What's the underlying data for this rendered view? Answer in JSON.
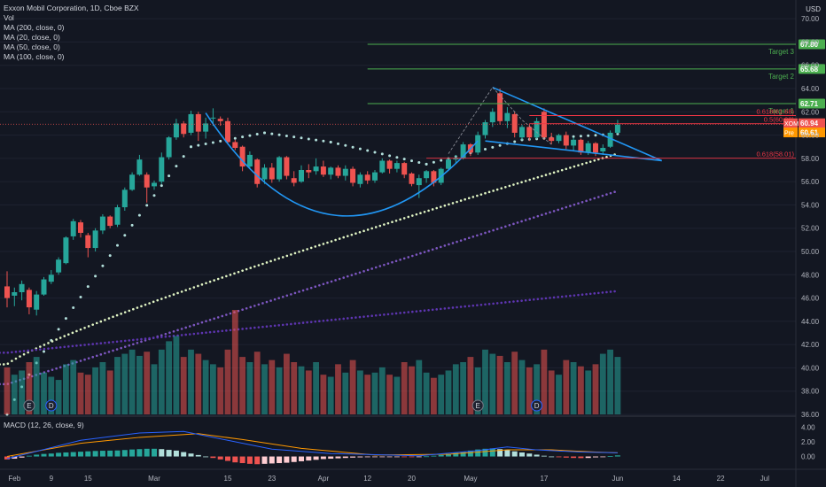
{
  "legend": {
    "symbol_line": "Exxon Mobil Corporation, 1D, Cboe BZX",
    "vol": "Vol",
    "ma200": "MA (200, close, 0)",
    "ma20": "MA (20, close, 0)",
    "ma50": "MA (50, close, 0)",
    "ma100": "MA (100, close, 0)"
  },
  "macd_legend": "MACD (12, 26, close, 9)",
  "currency": "USD",
  "colors": {
    "background": "#131722",
    "up": "#26a69a",
    "down": "#ef5350",
    "target_line": "#4caf50",
    "fib_line": "#f23645",
    "pattern": "#2196f3",
    "price_tag": "#ef5350",
    "pre_tag": "#ff9800"
  },
  "chart_data": {
    "type": "candlestick",
    "title": "Exxon Mobil Corporation, 1D, Cboe BZX",
    "ylim": [
      36,
      71
    ],
    "price_ticks": [
      36.0,
      38.0,
      40.0,
      42.0,
      44.0,
      46.0,
      48.0,
      50.0,
      52.0,
      54.0,
      56.0,
      58.0,
      60.0,
      62.0,
      64.0,
      66.0,
      68.0,
      70.0
    ],
    "x_ticks": [
      {
        "label": "Feb",
        "i": 1
      },
      {
        "label": "9",
        "i": 6
      },
      {
        "label": "15",
        "i": 11
      },
      {
        "label": "Mar",
        "i": 20
      },
      {
        "label": "15",
        "i": 30
      },
      {
        "label": "23",
        "i": 36
      },
      {
        "label": "Apr",
        "i": 43
      },
      {
        "label": "12",
        "i": 49
      },
      {
        "label": "20",
        "i": 55
      },
      {
        "label": "May",
        "i": 63
      },
      {
        "label": "17",
        "i": 73
      },
      {
        "label": "Jun",
        "i": 83
      },
      {
        "label": "14",
        "i": 91
      },
      {
        "label": "22",
        "i": 97
      },
      {
        "label": "Jul",
        "i": 103
      }
    ],
    "candles": [
      {
        "o": 47.0,
        "h": 48.3,
        "l": 45.2,
        "c": 46.0
      },
      {
        "o": 46.2,
        "h": 46.9,
        "l": 45.3,
        "c": 46.5
      },
      {
        "o": 46.5,
        "h": 47.5,
        "l": 45.8,
        "c": 47.2
      },
      {
        "o": 46.7,
        "h": 46.9,
        "l": 44.6,
        "c": 45.2
      },
      {
        "o": 45.0,
        "h": 46.6,
        "l": 44.5,
        "c": 46.3
      },
      {
        "o": 46.3,
        "h": 47.8,
        "l": 46.2,
        "c": 47.6
      },
      {
        "o": 47.4,
        "h": 48.4,
        "l": 47.2,
        "c": 48.0
      },
      {
        "o": 48.2,
        "h": 49.5,
        "l": 48.0,
        "c": 49.3
      },
      {
        "o": 49.0,
        "h": 51.3,
        "l": 48.9,
        "c": 51.2
      },
      {
        "o": 51.3,
        "h": 52.8,
        "l": 51.0,
        "c": 52.6
      },
      {
        "o": 52.5,
        "h": 52.7,
        "l": 51.2,
        "c": 51.6
      },
      {
        "o": 51.4,
        "h": 51.6,
        "l": 49.5,
        "c": 50.3
      },
      {
        "o": 50.3,
        "h": 52.0,
        "l": 50.0,
        "c": 51.8
      },
      {
        "o": 51.8,
        "h": 53.2,
        "l": 51.5,
        "c": 53.0
      },
      {
        "o": 53.0,
        "h": 53.1,
        "l": 52.0,
        "c": 52.2
      },
      {
        "o": 52.3,
        "h": 54.0,
        "l": 52.1,
        "c": 53.8
      },
      {
        "o": 53.8,
        "h": 55.5,
        "l": 53.5,
        "c": 55.3
      },
      {
        "o": 55.3,
        "h": 56.8,
        "l": 55.2,
        "c": 56.6
      },
      {
        "o": 56.6,
        "h": 58.3,
        "l": 56.5,
        "c": 57.9
      },
      {
        "o": 56.6,
        "h": 56.8,
        "l": 54.2,
        "c": 55.5
      },
      {
        "o": 55.6,
        "h": 56.1,
        "l": 55.3,
        "c": 55.9
      },
      {
        "o": 56.0,
        "h": 58.5,
        "l": 55.8,
        "c": 58.1
      },
      {
        "o": 58.1,
        "h": 59.9,
        "l": 57.9,
        "c": 59.8
      },
      {
        "o": 59.8,
        "h": 61.4,
        "l": 59.6,
        "c": 61.0
      },
      {
        "o": 61.0,
        "h": 61.2,
        "l": 59.8,
        "c": 60.1
      },
      {
        "o": 60.2,
        "h": 62.1,
        "l": 60.0,
        "c": 61.8
      },
      {
        "o": 61.8,
        "h": 62.0,
        "l": 59.5,
        "c": 60.3
      },
      {
        "o": 60.3,
        "h": 61.5,
        "l": 59.7,
        "c": 61.0
      },
      {
        "o": 61.5,
        "h": 62.3,
        "l": 60.8,
        "c": 61.5
      },
      {
        "o": 61.4,
        "h": 61.6,
        "l": 60.8,
        "c": 61.2
      },
      {
        "o": 61.2,
        "h": 61.5,
        "l": 59.2,
        "c": 59.4
      },
      {
        "o": 59.4,
        "h": 59.6,
        "l": 58.7,
        "c": 58.9
      },
      {
        "o": 59.0,
        "h": 59.1,
        "l": 56.9,
        "c": 57.3
      },
      {
        "o": 57.3,
        "h": 58.6,
        "l": 57.1,
        "c": 58.3
      },
      {
        "o": 57.9,
        "h": 58.0,
        "l": 55.5,
        "c": 55.8
      },
      {
        "o": 56.2,
        "h": 57.5,
        "l": 55.8,
        "c": 57.2
      },
      {
        "o": 57.2,
        "h": 57.6,
        "l": 55.9,
        "c": 56.2
      },
      {
        "o": 56.2,
        "h": 58.2,
        "l": 56.0,
        "c": 58.1
      },
      {
        "o": 58.1,
        "h": 58.2,
        "l": 56.2,
        "c": 56.5
      },
      {
        "o": 56.3,
        "h": 56.9,
        "l": 55.6,
        "c": 55.9
      },
      {
        "o": 56.0,
        "h": 57.4,
        "l": 55.9,
        "c": 57.0
      },
      {
        "o": 57.0,
        "h": 57.5,
        "l": 56.3,
        "c": 56.8
      },
      {
        "o": 56.9,
        "h": 58.0,
        "l": 56.6,
        "c": 57.3
      },
      {
        "o": 57.3,
        "h": 57.8,
        "l": 56.4,
        "c": 56.6
      },
      {
        "o": 56.6,
        "h": 57.3,
        "l": 56.2,
        "c": 57.2
      },
      {
        "o": 57.2,
        "h": 57.4,
        "l": 56.3,
        "c": 56.5
      },
      {
        "o": 56.5,
        "h": 57.4,
        "l": 56.1,
        "c": 57.1
      },
      {
        "o": 57.1,
        "h": 57.3,
        "l": 55.6,
        "c": 55.9
      },
      {
        "o": 55.8,
        "h": 56.8,
        "l": 55.5,
        "c": 56.6
      },
      {
        "o": 56.6,
        "h": 56.9,
        "l": 55.8,
        "c": 56.1
      },
      {
        "o": 56.1,
        "h": 57.0,
        "l": 55.9,
        "c": 56.8
      },
      {
        "o": 56.8,
        "h": 58.0,
        "l": 56.7,
        "c": 57.8
      },
      {
        "o": 57.8,
        "h": 57.9,
        "l": 56.7,
        "c": 57.1
      },
      {
        "o": 57.1,
        "h": 57.8,
        "l": 56.8,
        "c": 57.6
      },
      {
        "o": 57.6,
        "h": 57.7,
        "l": 56.3,
        "c": 56.6
      },
      {
        "o": 56.7,
        "h": 56.8,
        "l": 55.6,
        "c": 55.8
      },
      {
        "o": 55.7,
        "h": 56.6,
        "l": 54.6,
        "c": 56.3
      },
      {
        "o": 56.3,
        "h": 57.0,
        "l": 55.9,
        "c": 56.9
      },
      {
        "o": 56.9,
        "h": 57.0,
        "l": 55.6,
        "c": 55.9
      },
      {
        "o": 55.9,
        "h": 57.2,
        "l": 55.7,
        "c": 57.1
      },
      {
        "o": 57.1,
        "h": 58.1,
        "l": 57.0,
        "c": 57.9
      },
      {
        "o": 57.9,
        "h": 58.3,
        "l": 57.6,
        "c": 58.0
      },
      {
        "o": 58.0,
        "h": 59.4,
        "l": 57.9,
        "c": 59.2
      },
      {
        "o": 59.2,
        "h": 59.3,
        "l": 58.2,
        "c": 58.5
      },
      {
        "o": 58.5,
        "h": 60.3,
        "l": 58.3,
        "c": 60.0
      },
      {
        "o": 60.0,
        "h": 61.3,
        "l": 59.7,
        "c": 61.1
      },
      {
        "o": 61.1,
        "h": 62.3,
        "l": 60.7,
        "c": 62.0
      },
      {
        "o": 63.6,
        "h": 64.0,
        "l": 60.9,
        "c": 61.2
      },
      {
        "o": 61.2,
        "h": 62.4,
        "l": 60.6,
        "c": 61.9
      },
      {
        "o": 61.8,
        "h": 62.0,
        "l": 59.8,
        "c": 60.2
      },
      {
        "o": 59.8,
        "h": 60.9,
        "l": 59.6,
        "c": 60.7
      },
      {
        "o": 60.7,
        "h": 60.9,
        "l": 59.5,
        "c": 59.8
      },
      {
        "o": 59.8,
        "h": 61.5,
        "l": 59.7,
        "c": 61.2
      },
      {
        "o": 62.0,
        "h": 62.3,
        "l": 59.6,
        "c": 59.8
      },
      {
        "o": 59.8,
        "h": 60.2,
        "l": 59.2,
        "c": 59.5
      },
      {
        "o": 59.5,
        "h": 60.1,
        "l": 59.3,
        "c": 60.0
      },
      {
        "o": 60.0,
        "h": 60.3,
        "l": 58.8,
        "c": 59.1
      },
      {
        "o": 59.1,
        "h": 59.8,
        "l": 58.6,
        "c": 59.6
      },
      {
        "o": 59.6,
        "h": 59.7,
        "l": 58.3,
        "c": 58.5
      },
      {
        "o": 58.5,
        "h": 59.5,
        "l": 58.3,
        "c": 59.3
      },
      {
        "o": 59.3,
        "h": 59.4,
        "l": 58.2,
        "c": 58.5
      },
      {
        "o": 58.6,
        "h": 59.2,
        "l": 58.3,
        "c": 58.9
      },
      {
        "o": 59.0,
        "h": 60.4,
        "l": 58.9,
        "c": 60.2
      },
      {
        "o": 60.2,
        "h": 61.3,
        "l": 60.1,
        "c": 60.9
      }
    ],
    "volume_rel": [
      0.45,
      0.38,
      0.42,
      0.5,
      0.55,
      0.4,
      0.36,
      0.33,
      0.48,
      0.52,
      0.4,
      0.38,
      0.45,
      0.5,
      0.42,
      0.55,
      0.58,
      0.62,
      0.56,
      0.6,
      0.48,
      0.62,
      0.7,
      0.75,
      0.55,
      0.62,
      0.58,
      0.52,
      0.48,
      0.45,
      0.62,
      1.0,
      0.55,
      0.5,
      0.6,
      0.48,
      0.52,
      0.45,
      0.58,
      0.5,
      0.46,
      0.42,
      0.5,
      0.38,
      0.36,
      0.48,
      0.4,
      0.52,
      0.42,
      0.38,
      0.4,
      0.45,
      0.38,
      0.36,
      0.5,
      0.46,
      0.52,
      0.4,
      0.35,
      0.38,
      0.42,
      0.48,
      0.5,
      0.55,
      0.45,
      0.62,
      0.58,
      0.56,
      0.5,
      0.6,
      0.52,
      0.45,
      0.48,
      0.62,
      0.42,
      0.38,
      0.52,
      0.5,
      0.46,
      0.42,
      0.48,
      0.58,
      0.62,
      0.55
    ],
    "events": [
      {
        "label": "E",
        "i": 3
      },
      {
        "label": "D",
        "i": 6
      },
      {
        "label": "E",
        "i": 64
      },
      {
        "label": "D",
        "i": 72
      }
    ],
    "moving_averages": [
      {
        "name": "MA (20, close, 0)",
        "color": "#b2dfdb",
        "start": [
          0,
          36.0
        ],
        "end": [
          25,
          59.0
        ],
        "extra": [
          [
            35,
            60.2
          ],
          [
            44,
            59.4
          ],
          [
            57,
            57.5
          ],
          [
            70,
            59.6
          ],
          [
            83,
            60.1
          ]
        ]
      },
      {
        "name": "MA (50, close, 0)",
        "color": "#e1f5c4",
        "start": [
          0,
          40.3
        ],
        "end": [
          83,
          58.4
        ]
      },
      {
        "name": "MA (100, close, 0)",
        "color": "#7e57c2",
        "start": [
          0,
          38.6
        ],
        "end": [
          83,
          55.2
        ]
      },
      {
        "name": "MA (200, close, 0)",
        "color": "#5e35b1",
        "start": [
          0,
          41.3
        ],
        "end": [
          83,
          46.6
        ]
      }
    ],
    "targets": [
      {
        "label": "Target 3",
        "value": 67.8,
        "tag": "67.80"
      },
      {
        "label": "Target 2",
        "value": 65.68,
        "tag": "65.68"
      },
      {
        "label": "Target 1",
        "value": 62.71,
        "tag": "62.71"
      }
    ],
    "fib_levels": [
      {
        "label": "0.618(61.68)",
        "value": 61.68
      },
      {
        "label": "0.5(60.98)",
        "value": 60.98
      },
      {
        "label": "0.618(58.01)",
        "value": 58.01
      }
    ],
    "price_tags": [
      {
        "label": "XOM",
        "value": 60.94,
        "text": "60.94"
      },
      {
        "label": "Pre",
        "value": 60.61,
        "text": "60.61"
      }
    ],
    "macd": {
      "ylim": [
        -1.5,
        5.0
      ],
      "ticks": [
        4.0,
        2.0,
        0.0
      ],
      "hist": [
        -0.4,
        -0.3,
        -0.15,
        0.1,
        0.25,
        0.35,
        0.4,
        0.5,
        0.55,
        0.6,
        0.65,
        0.7,
        0.75,
        0.78,
        0.8,
        0.82,
        0.88,
        0.95,
        1.0,
        1.05,
        1.05,
        1.0,
        0.9,
        0.8,
        0.6,
        0.4,
        0.2,
        0.0,
        -0.2,
        -0.4,
        -0.6,
        -0.8,
        -0.9,
        -1.0,
        -1.05,
        -1.0,
        -0.95,
        -0.9,
        -0.85,
        -0.75,
        -0.65,
        -0.55,
        -0.45,
        -0.35,
        -0.3,
        -0.25,
        -0.2,
        -0.15,
        -0.12,
        -0.1,
        -0.08,
        -0.06,
        -0.05,
        -0.04,
        -0.05,
        -0.06,
        -0.04,
        0.02,
        0.1,
        0.2,
        0.35,
        0.5,
        0.65,
        0.8,
        0.95,
        1.05,
        1.1,
        1.0,
        0.85,
        0.7,
        0.55,
        0.4,
        0.25,
        0.1,
        0.0,
        -0.1,
        -0.15,
        -0.2,
        -0.22,
        -0.2,
        -0.12,
        -0.05,
        0.05,
        0.15
      ],
      "macd_line_pts": [
        [
          0,
          -0.3
        ],
        [
          10,
          2.2
        ],
        [
          18,
          3.2
        ],
        [
          24,
          3.4
        ],
        [
          30,
          2.2
        ],
        [
          36,
          1.0
        ],
        [
          44,
          0.4
        ],
        [
          56,
          0.1
        ],
        [
          64,
          0.8
        ],
        [
          68,
          1.3
        ],
        [
          72,
          0.9
        ],
        [
          78,
          0.6
        ],
        [
          83,
          0.5
        ]
      ],
      "signal_line_pts": [
        [
          0,
          0.0
        ],
        [
          10,
          1.8
        ],
        [
          18,
          2.6
        ],
        [
          26,
          3.1
        ],
        [
          32,
          2.3
        ],
        [
          40,
          1.1
        ],
        [
          50,
          0.2
        ],
        [
          60,
          0.3
        ],
        [
          68,
          0.9
        ],
        [
          74,
          0.9
        ],
        [
          80,
          0.6
        ],
        [
          83,
          0.5
        ]
      ]
    }
  }
}
